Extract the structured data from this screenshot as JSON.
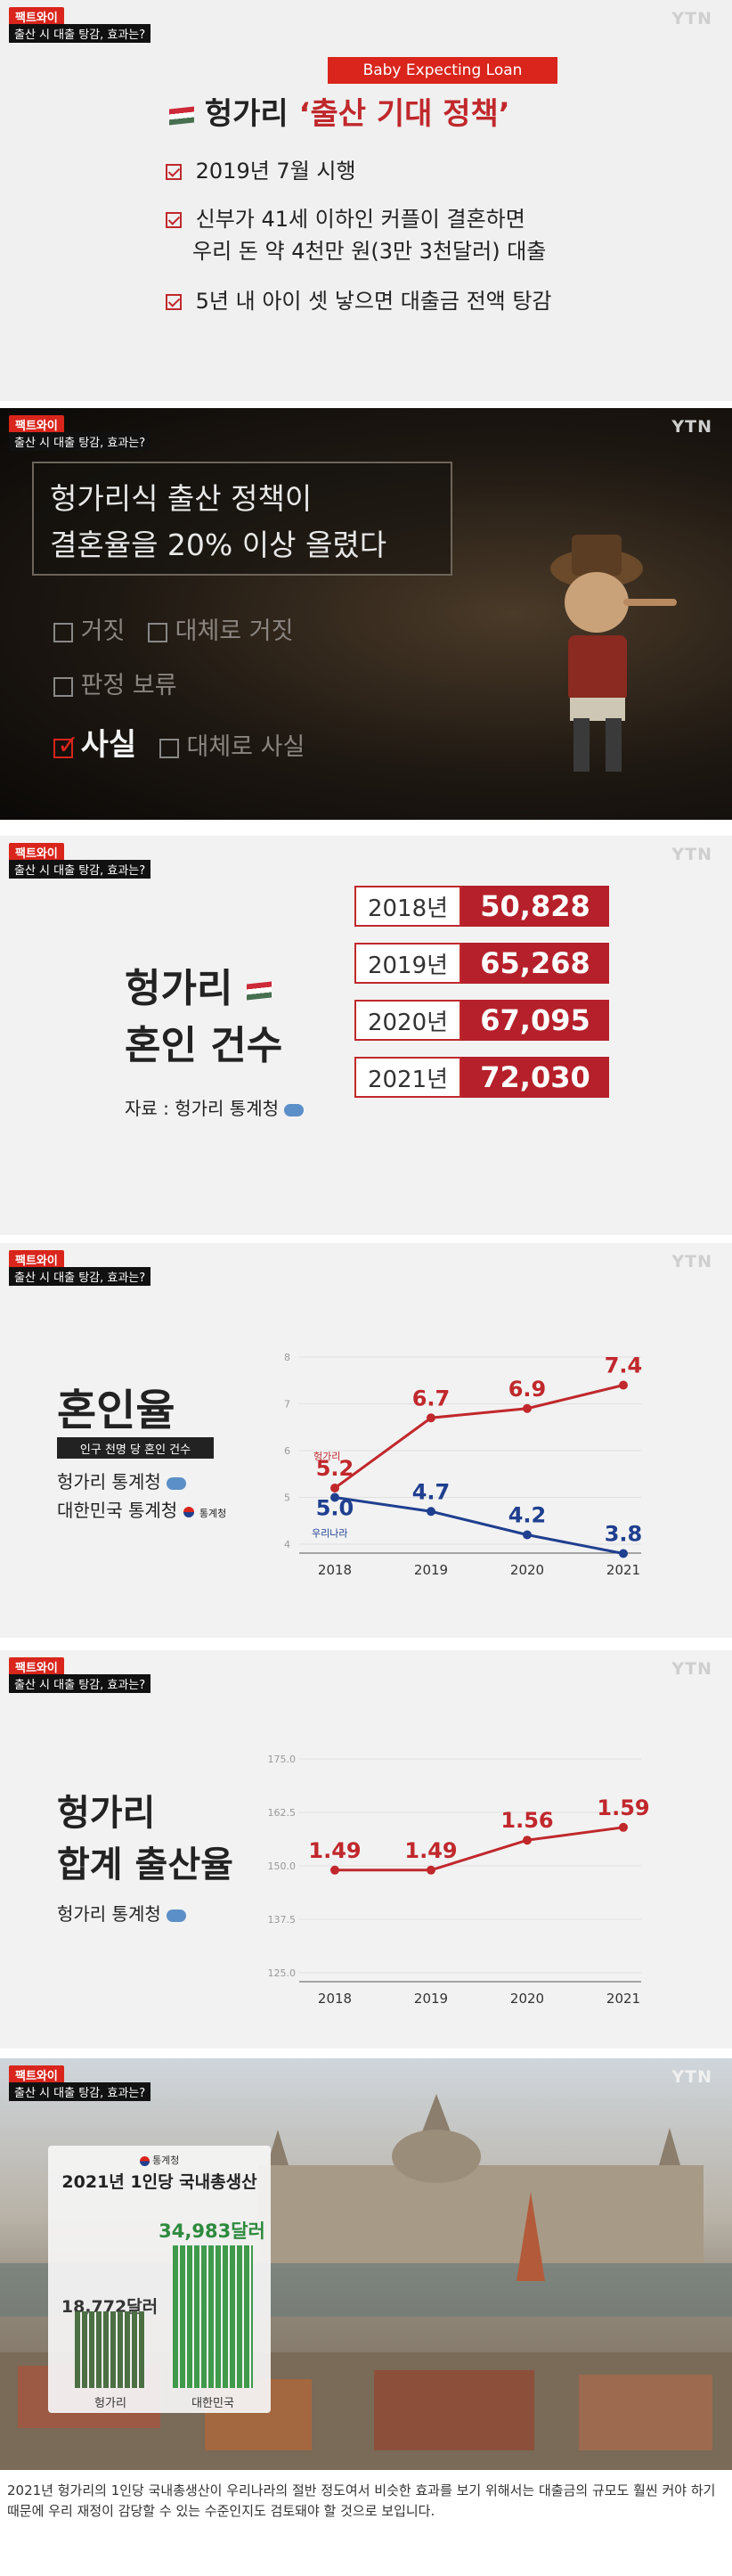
{
  "common": {
    "badge": "팩트와이",
    "subtitle": "출산 시 대출 탕감, 효과는?",
    "logo": "YTN"
  },
  "panel1": {
    "tag": "Baby Expecting Loan",
    "title_country": "헝가리",
    "title_policy": "‘출산 기대 정책’",
    "items": [
      "2019년 7월 시행",
      "신부가 41세 이하인 커플이 결혼하면",
      "우리 돈 약 4천만 원(3만 3천달러) 대출",
      "5년 내 아이 셋 낳으면 대출금 전액 탕감"
    ]
  },
  "panel2": {
    "claim_line1": "헝가리식 출산 정책이",
    "claim_line2": "결혼율을 20% 이상 올렸다",
    "opt_false": "거짓",
    "opt_mostly_false": "대체로 거짓",
    "opt_undetermined": "판정 보류",
    "opt_true": "사실",
    "opt_mostly_true": "대체로 사실"
  },
  "panel3": {
    "title1": "헝가리",
    "title2": "혼인 건수",
    "source": "자료 : 헝가리 통계청",
    "rows": [
      {
        "year": "2018년",
        "value": "50,828"
      },
      {
        "year": "2019년",
        "value": "65,268"
      },
      {
        "year": "2020년",
        "value": "67,095"
      },
      {
        "year": "2021년",
        "value": "72,030"
      }
    ]
  },
  "panel4": {
    "title": "혼인율",
    "unit_note": "인구 천명 당 혼인 건수",
    "source1": "헝가리 통계청",
    "source2": "대한민국 통계청",
    "kostat_label": "통계청",
    "series_hu": "헝가리",
    "series_kr": "우리나라"
  },
  "panel5": {
    "title1": "헝가리",
    "title2": "합계 출산율",
    "source": "헝가리 통계청"
  },
  "panel6": {
    "kostat_label": "통계청",
    "title": "2021년 1인당 국내총생산",
    "hu_value": "18,772달러",
    "kr_value": "34,983달러",
    "hu_label": "헝가리",
    "kr_label": "대한민국"
  },
  "caption": "2021년 헝가리의 1인당 국내총생산이 우리나라의 절반 정도여서 비슷한 효과를 보기 위해서는 대출금의 규모도 훨씬 커야 하기 때문에 우리 재정이 감당할 수 있는 수준인지도 검토돼야 할 것으로 보입니다.",
  "colors": {
    "accent": "#c0282c",
    "dark_red": "#b5202a",
    "korea_blue": "#1f3f8f"
  },
  "chart_data": [
    {
      "type": "line",
      "title": "혼인율",
      "x": [
        "2018",
        "2019",
        "2020",
        "2021"
      ],
      "series": [
        {
          "name": "헝가리",
          "values": [
            5.2,
            6.7,
            6.9,
            7.4
          ],
          "color": "#c0282c"
        },
        {
          "name": "우리나라",
          "values": [
            5.0,
            4.7,
            4.2,
            3.8
          ],
          "color": "#1f3f8f"
        }
      ],
      "yticks": [
        4,
        5,
        6,
        7,
        8
      ],
      "ylim": [
        4,
        8
      ]
    },
    {
      "type": "line",
      "title": "합계 출산율",
      "x": [
        "2018",
        "2019",
        "2020",
        "2021"
      ],
      "series": [
        {
          "name": "헝가리",
          "values": [
            1.49,
            1.49,
            1.56,
            1.59
          ],
          "color": "#c0282c"
        }
      ],
      "yticks": [
        "175.0",
        "162.5",
        "150.0",
        "137.5",
        "125.0"
      ],
      "ylim": [
        1.25,
        1.75
      ]
    },
    {
      "type": "bar",
      "title": "2021년 1인당 국내총생산",
      "categories": [
        "헝가리",
        "대한민국"
      ],
      "values": [
        18772,
        34983
      ],
      "unit": "달러"
    }
  ]
}
